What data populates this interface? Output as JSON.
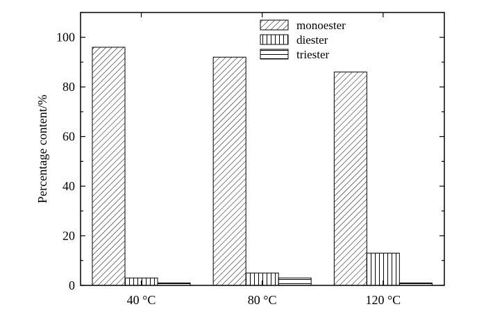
{
  "chart_data": {
    "type": "bar",
    "title": "",
    "xlabel": "",
    "ylabel": "Percentage content/%",
    "ylim": [
      0,
      110
    ],
    "yticks": [
      0,
      20,
      40,
      60,
      80,
      100
    ],
    "categories": [
      "40 °C",
      "80 °C",
      "120 °C"
    ],
    "series": [
      {
        "name": "monoester",
        "values": [
          96,
          92,
          86
        ],
        "pattern": "diagonal-hatch"
      },
      {
        "name": "diester",
        "values": [
          3,
          5,
          13
        ],
        "pattern": "vertical-lines"
      },
      {
        "name": "triester",
        "values": [
          1,
          3,
          1
        ],
        "pattern": "horizontal-lines"
      }
    ],
    "grid": false,
    "legend_position": "top-right",
    "colors": {
      "stroke": "#000000",
      "fill": "#ffffff"
    }
  }
}
